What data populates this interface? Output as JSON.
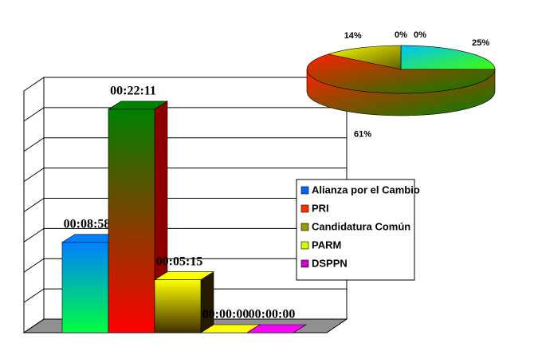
{
  "chart_data": [
    {
      "type": "bar3d",
      "categories": [
        "Alianza por el Cambio",
        "PRI",
        "Candidatura Común",
        "PARM",
        "DSPPN"
      ],
      "values": [
        538,
        1331,
        315,
        0,
        0
      ],
      "value_labels": [
        "00:08:58",
        "00:22:11",
        "00:05:15",
        "00:00:00",
        "00:00:00"
      ],
      "colors": [
        "#0066ff",
        "#ff3300",
        "#999900",
        "#ccff00",
        "#cc00cc"
      ],
      "gradients": [
        [
          "#0080ff",
          "#00ff40"
        ],
        [
          "#008000",
          "#ff0000"
        ],
        [
          "#ffff00",
          "#403000"
        ],
        [
          "#ffff00",
          "#80c000"
        ],
        [
          "#ff00ff",
          "#800080"
        ]
      ],
      "ylim": [
        0,
        1440
      ],
      "yticks": [
        0,
        180,
        360,
        540,
        720,
        900,
        1080,
        1260,
        1440
      ],
      "grid": true,
      "legend": "right"
    },
    {
      "type": "pie3d",
      "values": [
        25,
        61,
        14,
        0,
        0
      ],
      "value_labels": [
        "25%",
        "61%",
        "14%",
        "0%",
        "0%"
      ],
      "gradients": [
        [
          "#00c0ff",
          "#40ff00"
        ],
        [
          "#ff2000",
          "#008000"
        ],
        [
          "#ffff00",
          "#606000"
        ],
        [
          "#ffff00",
          "#80c000"
        ],
        [
          "#ff00ff",
          "#800080"
        ]
      ]
    }
  ]
}
